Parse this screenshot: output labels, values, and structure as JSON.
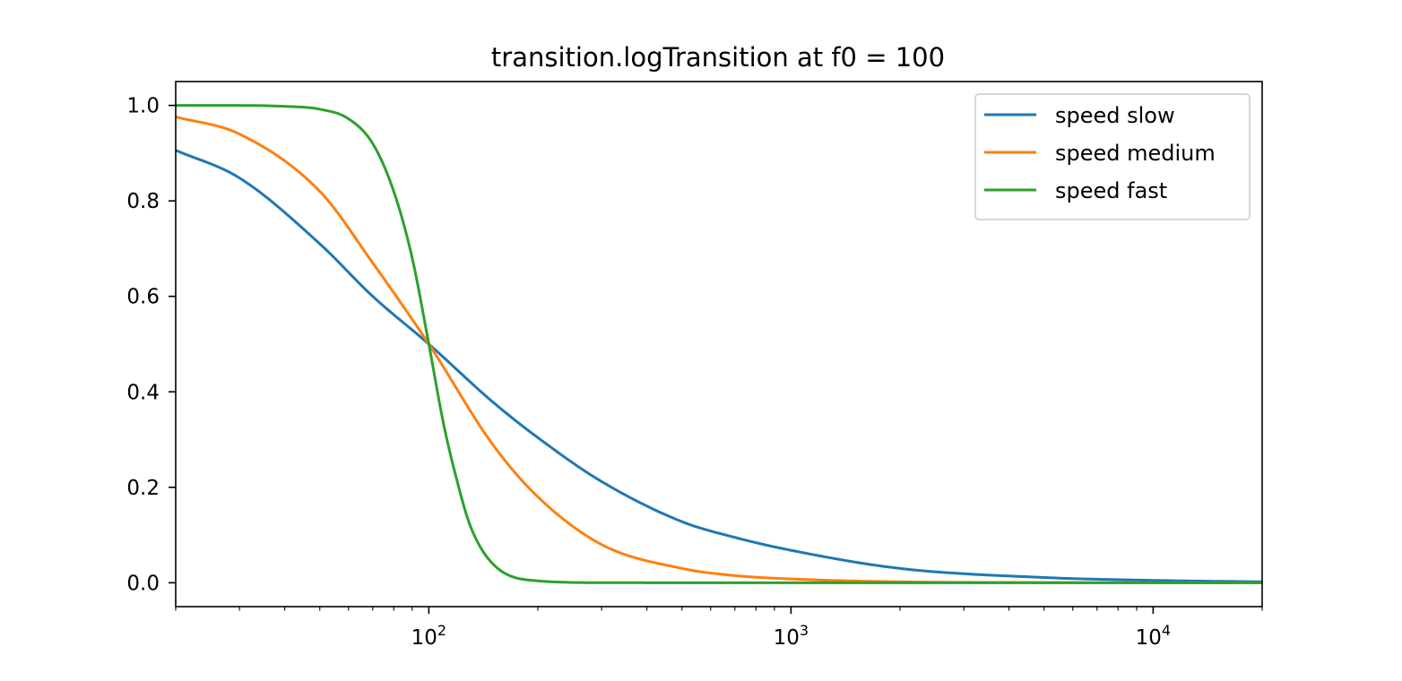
{
  "chart_data": {
    "type": "line",
    "title": "transition.logTransition at f0 = 100",
    "xlabel": "",
    "ylabel": "",
    "xscale": "log",
    "xlim": [
      20,
      20000
    ],
    "ylim": [
      -0.05,
      1.05
    ],
    "f0": 100,
    "x_ticks": [
      {
        "value": 100,
        "base": "10",
        "exp": "2"
      },
      {
        "value": 1000,
        "base": "10",
        "exp": "3"
      },
      {
        "value": 10000,
        "base": "10",
        "exp": "4"
      }
    ],
    "y_ticks": [
      {
        "value": 0.0,
        "label": "0.0"
      },
      {
        "value": 0.2,
        "label": "0.2"
      },
      {
        "value": 0.4,
        "label": "0.4"
      },
      {
        "value": 0.6,
        "label": "0.6"
      },
      {
        "value": 0.8,
        "label": "0.8"
      },
      {
        "value": 1.0,
        "label": "1.0"
      }
    ],
    "legend_position": "top-right",
    "series": [
      {
        "name": "speed slow",
        "color": "#1f77b4",
        "x": [
          20,
          30,
          50,
          70,
          100,
          150,
          200,
          300,
          500,
          700,
          1000,
          2000,
          5000,
          10000,
          20000
        ],
        "y": [
          0.906,
          0.848,
          0.71,
          0.6,
          0.5,
          0.379,
          0.304,
          0.212,
          0.128,
          0.095,
          0.068,
          0.03,
          0.011,
          0.005,
          0.002
        ]
      },
      {
        "name": "speed medium",
        "color": "#ff7f0e",
        "x": [
          20,
          30,
          50,
          70,
          100,
          150,
          200,
          300,
          500,
          700,
          1000,
          2000,
          5000,
          10000,
          20000
        ],
        "y": [
          0.976,
          0.94,
          0.82,
          0.67,
          0.5,
          0.29,
          0.18,
          0.08,
          0.03,
          0.015,
          0.008,
          0.002,
          0.0005,
          0.0001,
          0.0
        ]
      },
      {
        "name": "speed fast",
        "color": "#2ca02c",
        "x": [
          20,
          30,
          40,
          50,
          60,
          70,
          80,
          90,
          100,
          110,
          120,
          130,
          150,
          200,
          300,
          1000,
          20000
        ],
        "y": [
          1.0,
          0.9999,
          0.998,
          0.992,
          0.972,
          0.92,
          0.82,
          0.68,
          0.5,
          0.33,
          0.21,
          0.12,
          0.04,
          0.004,
          0.0002,
          0.0,
          0.0
        ]
      }
    ]
  }
}
